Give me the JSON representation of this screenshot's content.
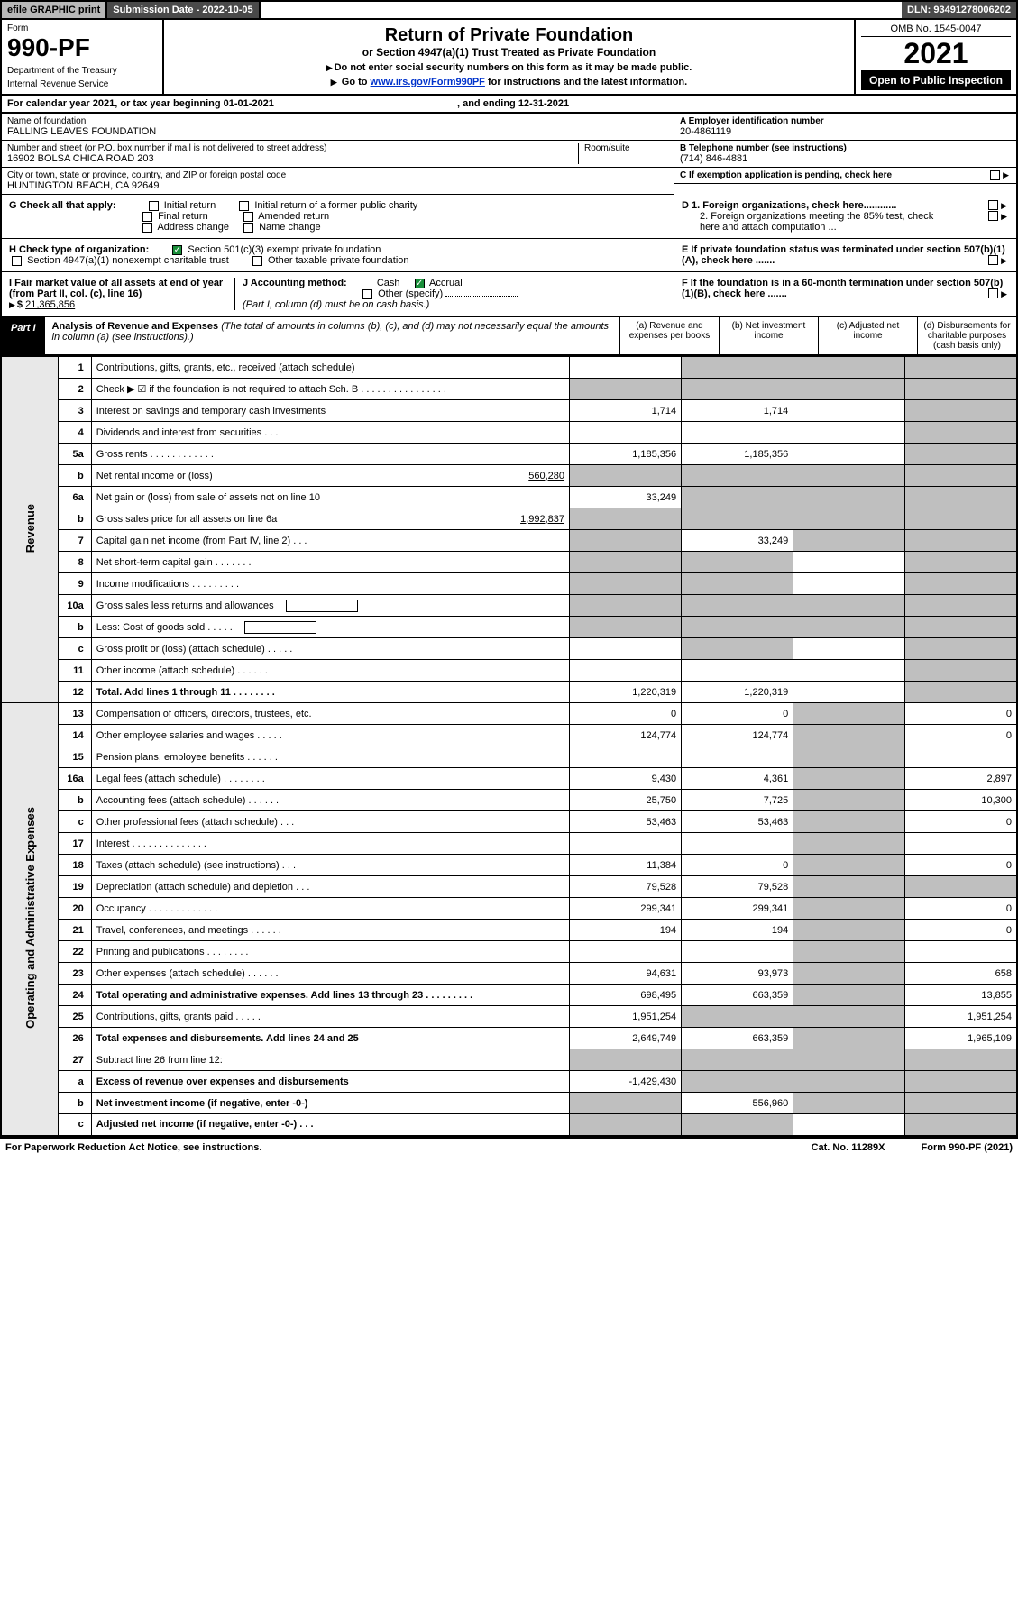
{
  "topbar": {
    "efile": "efile GRAPHIC print",
    "subdate_label": "Submission Date - ",
    "subdate": "2022-10-05",
    "dln_label": "DLN: ",
    "dln": "93491278006202"
  },
  "header": {
    "form_label": "Form",
    "form_no": "990-PF",
    "dept1": "Department of the Treasury",
    "dept2": "Internal Revenue Service",
    "title": "Return of Private Foundation",
    "subtitle": "or Section 4947(a)(1) Trust Treated as Private Foundation",
    "instr1": "Do not enter social security numbers on this form as it may be made public.",
    "instr2_pre": "Go to ",
    "instr2_link": "www.irs.gov/Form990PF",
    "instr2_post": " for instructions and the latest information.",
    "omb": "OMB No. 1545-0047",
    "year": "2021",
    "open": "Open to Public Inspection"
  },
  "calendar": {
    "text": "For calendar year 2021, or tax year beginning 01-01-2021",
    "ending": ", and ending 12-31-2021"
  },
  "foundation": {
    "name_label": "Name of foundation",
    "name": "FALLING LEAVES FOUNDATION",
    "addr_label": "Number and street (or P.O. box number if mail is not delivered to street address)",
    "room_label": "Room/suite",
    "addr": "16902 BOLSA CHICA ROAD 203",
    "city_label": "City or town, state or province, country, and ZIP or foreign postal code",
    "city": "HUNTINGTON BEACH, CA  92649",
    "ein_label": "A Employer identification number",
    "ein": "20-4861119",
    "phone_label": "B Telephone number (see instructions)",
    "phone": "(714) 846-4881",
    "c_label": "C If exemption application is pending, check here"
  },
  "checks": {
    "g_label": "G Check all that apply:",
    "g_opts": [
      "Initial return",
      "Initial return of a former public charity",
      "Final return",
      "Amended return",
      "Address change",
      "Name change"
    ],
    "h_label": "H Check type of organization:",
    "h1": "Section 501(c)(3) exempt private foundation",
    "h2": "Section 4947(a)(1) nonexempt charitable trust",
    "h3": "Other taxable private foundation",
    "i_label": "I Fair market value of all assets at end of year (from Part II, col. (c), line 16)",
    "i_val": "21,365,856",
    "j_label": "J Accounting method:",
    "j_cash": "Cash",
    "j_accrual": "Accrual",
    "j_other": "Other (specify)",
    "j_note": "(Part I, column (d) must be on cash basis.)",
    "d1": "D 1. Foreign organizations, check here............",
    "d2": "2. Foreign organizations meeting the 85% test, check here and attach computation ...",
    "e_label": "E  If private foundation status was terminated under section 507(b)(1)(A), check here .......",
    "f_label": "F  If the foundation is in a 60-month termination under section 507(b)(1)(B), check here .......",
    "dollar": "$"
  },
  "part1": {
    "tab": "Part I",
    "title_bold": "Analysis of Revenue and Expenses",
    "title_rest": " (The total of amounts in columns (b), (c), and (d) may not necessarily equal the amounts in column (a) (see instructions).)",
    "col_a": "(a)   Revenue and expenses per books",
    "col_b": "(b)   Net investment income",
    "col_c": "(c)   Adjusted net income",
    "col_d": "(d)   Disbursements for charitable purposes (cash basis only)"
  },
  "side_labels": {
    "revenue": "Revenue",
    "expenses": "Operating and Administrative Expenses"
  },
  "rows": [
    {
      "n": "1",
      "desc": "Contributions, gifts, grants, etc., received (attach schedule)",
      "a": "",
      "b": "",
      "b_grey": true,
      "c": "",
      "c_grey": true,
      "d": "",
      "d_grey": true
    },
    {
      "n": "2",
      "desc": "Check ▶ ☑ if the foundation is not required to attach Sch. B   .   .   .   .   .   .   .   .   .   .   .   .   .   .   .   .",
      "a": "",
      "a_grey": true,
      "b": "",
      "b_grey": true,
      "c": "",
      "c_grey": true,
      "d": "",
      "d_grey": true
    },
    {
      "n": "3",
      "desc": "Interest on savings and temporary cash investments",
      "a": "1,714",
      "b": "1,714",
      "c": "",
      "d": "",
      "d_grey": true
    },
    {
      "n": "4",
      "desc": "Dividends and interest from securities   .   .   .",
      "a": "",
      "b": "",
      "c": "",
      "d": "",
      "d_grey": true
    },
    {
      "n": "5a",
      "desc": "Gross rents   .   .   .   .   .   .   .   .   .   .   .   .",
      "a": "1,185,356",
      "b": "1,185,356",
      "c": "",
      "d": "",
      "d_grey": true
    },
    {
      "n": "b",
      "desc": "Net rental income or (loss)",
      "inline": "560,280",
      "a": "",
      "a_grey": true,
      "b": "",
      "b_grey": true,
      "c": "",
      "c_grey": true,
      "d": "",
      "d_grey": true
    },
    {
      "n": "6a",
      "desc": "Net gain or (loss) from sale of assets not on line 10",
      "a": "33,249",
      "b": "",
      "b_grey": true,
      "c": "",
      "c_grey": true,
      "d": "",
      "d_grey": true
    },
    {
      "n": "b",
      "desc": "Gross sales price for all assets on line 6a",
      "inline": "1,992,837",
      "a": "",
      "a_grey": true,
      "b": "",
      "b_grey": true,
      "c": "",
      "c_grey": true,
      "d": "",
      "d_grey": true
    },
    {
      "n": "7",
      "desc": "Capital gain net income (from Part IV, line 2)   .   .   .",
      "a": "",
      "a_grey": true,
      "b": "33,249",
      "c": "",
      "c_grey": true,
      "d": "",
      "d_grey": true
    },
    {
      "n": "8",
      "desc": "Net short-term capital gain   .   .   .   .   .   .   .",
      "a": "",
      "a_grey": true,
      "b": "",
      "b_grey": true,
      "c": "",
      "d": "",
      "d_grey": true
    },
    {
      "n": "9",
      "desc": "Income modifications   .   .   .   .   .   .   .   .   .",
      "a": "",
      "a_grey": true,
      "b": "",
      "b_grey": true,
      "c": "",
      "d": "",
      "d_grey": true
    },
    {
      "n": "10a",
      "desc": "Gross sales less returns and allowances",
      "box": true,
      "a": "",
      "a_grey": true,
      "b": "",
      "b_grey": true,
      "c": "",
      "c_grey": true,
      "d": "",
      "d_grey": true
    },
    {
      "n": "b",
      "desc": "Less: Cost of goods sold   .   .   .   .   .",
      "box": true,
      "a": "",
      "a_grey": true,
      "b": "",
      "b_grey": true,
      "c": "",
      "c_grey": true,
      "d": "",
      "d_grey": true
    },
    {
      "n": "c",
      "desc": "Gross profit or (loss) (attach schedule)   .   .   .   .   .",
      "a": "",
      "b": "",
      "b_grey": true,
      "c": "",
      "d": "",
      "d_grey": true
    },
    {
      "n": "11",
      "desc": "Other income (attach schedule)   .   .   .   .   .   .",
      "a": "",
      "b": "",
      "c": "",
      "d": "",
      "d_grey": true
    },
    {
      "n": "12",
      "desc": "Total. Add lines 1 through 11   .   .   .   .   .   .   .   .",
      "bold": true,
      "a": "1,220,319",
      "b": "1,220,319",
      "c": "",
      "d": "",
      "d_grey": true
    },
    {
      "section": "exp"
    },
    {
      "n": "13",
      "desc": "Compensation of officers, directors, trustees, etc.",
      "a": "0",
      "b": "0",
      "c": "",
      "c_grey": true,
      "d": "0"
    },
    {
      "n": "14",
      "desc": "Other employee salaries and wages   .   .   .   .   .",
      "a": "124,774",
      "b": "124,774",
      "c": "",
      "c_grey": true,
      "d": "0"
    },
    {
      "n": "15",
      "desc": "Pension plans, employee benefits   .   .   .   .   .   .",
      "a": "",
      "b": "",
      "c": "",
      "c_grey": true,
      "d": ""
    },
    {
      "n": "16a",
      "desc": "Legal fees (attach schedule)   .   .   .   .   .   .   .   .",
      "a": "9,430",
      "b": "4,361",
      "c": "",
      "c_grey": true,
      "d": "2,897"
    },
    {
      "n": "b",
      "desc": "Accounting fees (attach schedule)   .   .   .   .   .   .",
      "a": "25,750",
      "b": "7,725",
      "c": "",
      "c_grey": true,
      "d": "10,300"
    },
    {
      "n": "c",
      "desc": "Other professional fees (attach schedule)   .   .   .",
      "a": "53,463",
      "b": "53,463",
      "c": "",
      "c_grey": true,
      "d": "0"
    },
    {
      "n": "17",
      "desc": "Interest   .   .   .   .   .   .   .   .   .   .   .   .   .   .",
      "a": "",
      "b": "",
      "c": "",
      "c_grey": true,
      "d": ""
    },
    {
      "n": "18",
      "desc": "Taxes (attach schedule) (see instructions)   .   .   .",
      "a": "11,384",
      "b": "0",
      "c": "",
      "c_grey": true,
      "d": "0"
    },
    {
      "n": "19",
      "desc": "Depreciation (attach schedule) and depletion   .   .   .",
      "a": "79,528",
      "b": "79,528",
      "c": "",
      "c_grey": true,
      "d": "",
      "d_grey": true
    },
    {
      "n": "20",
      "desc": "Occupancy   .   .   .   .   .   .   .   .   .   .   .   .   .",
      "a": "299,341",
      "b": "299,341",
      "c": "",
      "c_grey": true,
      "d": "0"
    },
    {
      "n": "21",
      "desc": "Travel, conferences, and meetings   .   .   .   .   .   .",
      "a": "194",
      "b": "194",
      "c": "",
      "c_grey": true,
      "d": "0"
    },
    {
      "n": "22",
      "desc": "Printing and publications   .   .   .   .   .   .   .   .",
      "a": "",
      "b": "",
      "c": "",
      "c_grey": true,
      "d": ""
    },
    {
      "n": "23",
      "desc": "Other expenses (attach schedule)   .   .   .   .   .   .",
      "a": "94,631",
      "b": "93,973",
      "c": "",
      "c_grey": true,
      "d": "658"
    },
    {
      "n": "24",
      "desc": "Total operating and administrative expenses. Add lines 13 through 23   .   .   .   .   .   .   .   .   .",
      "bold": true,
      "a": "698,495",
      "b": "663,359",
      "c": "",
      "c_grey": true,
      "d": "13,855"
    },
    {
      "n": "25",
      "desc": "Contributions, gifts, grants paid   .   .   .   .   .",
      "a": "1,951,254",
      "b": "",
      "b_grey": true,
      "c": "",
      "c_grey": true,
      "d": "1,951,254"
    },
    {
      "n": "26",
      "desc": "Total expenses and disbursements. Add lines 24 and 25",
      "bold": true,
      "a": "2,649,749",
      "b": "663,359",
      "c": "",
      "c_grey": true,
      "d": "1,965,109"
    },
    {
      "n": "27",
      "desc": "Subtract line 26 from line 12:",
      "a": "",
      "a_grey": true,
      "b": "",
      "b_grey": true,
      "c": "",
      "c_grey": true,
      "d": "",
      "d_grey": true
    },
    {
      "n": "a",
      "desc": "Excess of revenue over expenses and disbursements",
      "bold": true,
      "a": "-1,429,430",
      "b": "",
      "b_grey": true,
      "c": "",
      "c_grey": true,
      "d": "",
      "d_grey": true
    },
    {
      "n": "b",
      "desc": "Net investment income (if negative, enter -0-)",
      "bold": true,
      "a": "",
      "a_grey": true,
      "b": "556,960",
      "c": "",
      "c_grey": true,
      "d": "",
      "d_grey": true
    },
    {
      "n": "c",
      "desc": "Adjusted net income (if negative, enter -0-)   .   .   .",
      "bold": true,
      "a": "",
      "a_grey": true,
      "b": "",
      "b_grey": true,
      "c": "",
      "d": "",
      "d_grey": true
    }
  ],
  "footer": {
    "left": "For Paperwork Reduction Act Notice, see instructions.",
    "center": "Cat. No. 11289X",
    "right": "Form 990-PF (2021)"
  },
  "colors": {
    "grey_cell": "#bfbfbf",
    "dark_bar": "#4a4a4a",
    "btn_grey": "#b8b8b8",
    "check_green": "#1a8f3a",
    "link": "#0033cc"
  }
}
